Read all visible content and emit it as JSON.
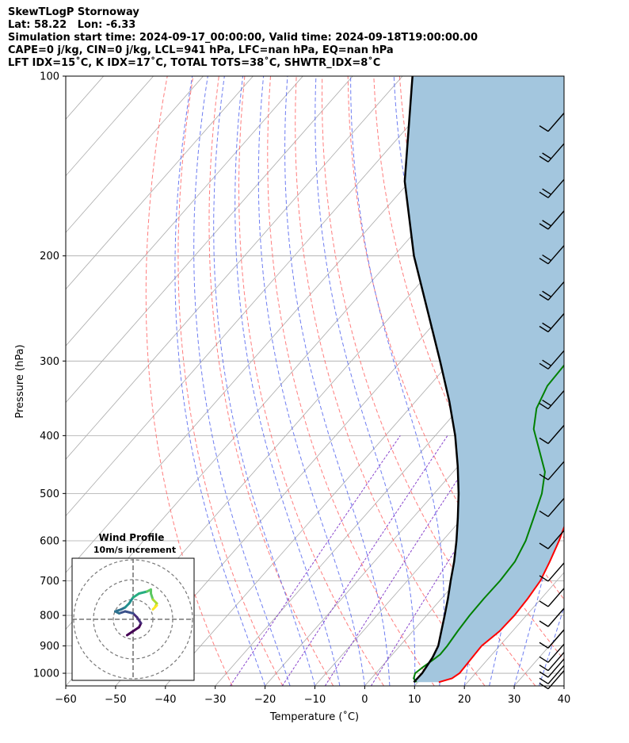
{
  "header": {
    "line1": "SkewTLogP Stornoway",
    "line2": "Lat: 58.22   Lon: -6.33",
    "line3": "Simulation start time: 2024-09-17_00:00:00, Valid time: 2024-09-18T19:00:00.00",
    "line4": "CAPE=0 j/kg, CIN=0 j/kg, LCL=941 hPa, LFC=nan hPa, EQ=nan hPa",
    "line5": "LFT IDX=15˚C, K IDX=17˚C, TOTAL TOTS=38˚C, SHWTR_IDX=8˚C"
  },
  "chart_data": {
    "type": "line",
    "xlabel": "Temperature (˚C)",
    "ylabel": "Pressure (hPa)",
    "xlim": [
      -60,
      40
    ],
    "ylim_pressure": [
      1050,
      100
    ],
    "log_pressure_axis": true,
    "skew": true,
    "grid": true,
    "x_ticks": [
      -60,
      -50,
      -40,
      -30,
      -20,
      -10,
      0,
      10,
      20,
      30,
      40
    ],
    "x_tick_labels": [
      "−60",
      "−50",
      "−40",
      "−30",
      "−20",
      "−10",
      "0",
      "10",
      "20",
      "30",
      "40"
    ],
    "y_ticks": [
      1000,
      900,
      800,
      700,
      600,
      500,
      400,
      300,
      200,
      100
    ],
    "y_tick_labels": [
      "1000",
      "900",
      "800",
      "700",
      "600",
      "500",
      "400",
      "300",
      "200",
      "100"
    ],
    "colors": {
      "temperature": "#ff0000",
      "dewpoint": "#008000",
      "parcel": "#000000",
      "cape_fill": "#a3c6de",
      "dry_adiabat": "#ff6666",
      "moist_adiabat": "#5566ee",
      "mixing_ratio": "#8844cc",
      "isotherm": "#aaaaaa"
    },
    "series": [
      {
        "role": "temperature",
        "points": [
          [
            1035,
            14.2
          ],
          [
            1020,
            16.2
          ],
          [
            1000,
            16.8
          ],
          [
            950,
            16.6
          ],
          [
            900,
            16.4
          ],
          [
            850,
            17.4
          ],
          [
            800,
            17.6
          ],
          [
            750,
            17.3
          ],
          [
            700,
            16.7
          ],
          [
            650,
            15.2
          ],
          [
            600,
            13.4
          ],
          [
            550,
            11.1
          ],
          [
            500,
            8.8
          ],
          [
            460,
            6.8
          ],
          [
            420,
            5.3
          ],
          [
            390,
            3.9
          ],
          [
            360,
            0.9
          ],
          [
            330,
            -2.7
          ],
          [
            300,
            -6.8
          ],
          [
            270,
            -11.2
          ],
          [
            240,
            -15.6
          ],
          [
            220,
            -18.6
          ],
          [
            200,
            -22.4
          ],
          [
            180,
            -27.3
          ],
          [
            165,
            -32.0
          ],
          [
            150,
            -34.5
          ],
          [
            140,
            -36.6
          ],
          [
            130,
            -40.6
          ],
          [
            120,
            -45.2
          ],
          [
            110,
            -49.2
          ],
          [
            100,
            -52.0
          ]
        ]
      },
      {
        "role": "dewpoint",
        "points": [
          [
            1035,
            9.7
          ],
          [
            1020,
            8.5
          ],
          [
            1000,
            7.9
          ],
          [
            975,
            8.4
          ],
          [
            950,
            9.1
          ],
          [
            930,
            9.6
          ],
          [
            900,
            9.5
          ],
          [
            850,
            9.0
          ],
          [
            800,
            8.6
          ],
          [
            750,
            8.5
          ],
          [
            700,
            8.6
          ],
          [
            650,
            8.2
          ],
          [
            600,
            6.7
          ],
          [
            550,
            4.3
          ],
          [
            500,
            1.6
          ],
          [
            460,
            -1.6
          ],
          [
            420,
            -7.0
          ],
          [
            390,
            -11.4
          ],
          [
            360,
            -14.5
          ],
          [
            330,
            -16.3
          ],
          [
            300,
            -16.6
          ],
          [
            275,
            -19.9
          ],
          [
            250,
            -23.0
          ],
          [
            235,
            -27.6
          ],
          [
            220,
            -30.3
          ],
          [
            200,
            -32.8
          ],
          [
            185,
            -35.6
          ],
          [
            170,
            -38.7
          ],
          [
            155,
            -42.1
          ],
          [
            140,
            -46.9
          ],
          [
            125,
            -53.4
          ],
          [
            110,
            -61.5
          ],
          [
            100,
            -67.5
          ]
        ]
      },
      {
        "role": "parcel",
        "points": [
          [
            1035,
            9.2
          ],
          [
            1000,
            9.3
          ],
          [
            941,
            8.6
          ],
          [
            900,
            7.7
          ],
          [
            850,
            5.7
          ],
          [
            800,
            3.6
          ],
          [
            750,
            1.3
          ],
          [
            700,
            -1.3
          ],
          [
            650,
            -4.0
          ],
          [
            600,
            -7.2
          ],
          [
            550,
            -10.9
          ],
          [
            500,
            -15.1
          ],
          [
            450,
            -20.1
          ],
          [
            400,
            -26.0
          ],
          [
            350,
            -33.3
          ],
          [
            300,
            -42.2
          ],
          [
            250,
            -52.9
          ],
          [
            200,
            -66.0
          ],
          [
            150,
            -81.0
          ],
          [
            100,
            -98.0
          ]
        ]
      }
    ],
    "wind_barbs": [
      {
        "pressure": 1030,
        "barbs": 1
      },
      {
        "pressure": 1010,
        "barbs": 1
      },
      {
        "pressure": 985,
        "barbs": 1
      },
      {
        "pressure": 960,
        "barbs": 1
      },
      {
        "pressure": 930,
        "barbs": 1
      },
      {
        "pressure": 880,
        "barbs": 1
      },
      {
        "pressure": 810,
        "barbs": 1
      },
      {
        "pressure": 750,
        "barbs": 1
      },
      {
        "pressure": 680,
        "barbs": 1
      },
      {
        "pressure": 600,
        "barbs": 1
      },
      {
        "pressure": 530,
        "barbs": 1
      },
      {
        "pressure": 460,
        "barbs": 1
      },
      {
        "pressure": 400,
        "barbs": 1
      },
      {
        "pressure": 350,
        "barbs": 2
      },
      {
        "pressure": 300,
        "barbs": 2
      },
      {
        "pressure": 260,
        "barbs": 2
      },
      {
        "pressure": 230,
        "barbs": 2
      },
      {
        "pressure": 200,
        "barbs": 2
      },
      {
        "pressure": 175,
        "barbs": 2
      },
      {
        "pressure": 155,
        "barbs": 2
      },
      {
        "pressure": 135,
        "barbs": 2
      },
      {
        "pressure": 120,
        "barbs": 1
      }
    ],
    "hodograph": {
      "title": "Wind Profile",
      "subtitle": "10m/s increment",
      "rings": [
        1,
        2,
        3
      ],
      "points": [
        [
          -0.3,
          -0.8
        ],
        [
          0.0,
          -0.6
        ],
        [
          0.3,
          -0.4
        ],
        [
          0.4,
          -0.2
        ],
        [
          0.2,
          0.1
        ],
        [
          0.0,
          0.3
        ],
        [
          -0.4,
          0.4
        ],
        [
          -0.7,
          0.3
        ],
        [
          -0.9,
          0.4
        ],
        [
          -0.6,
          0.5
        ],
        [
          -0.4,
          0.6
        ],
        [
          -0.2,
          0.8
        ],
        [
          0.0,
          1.1
        ],
        [
          0.3,
          1.3
        ],
        [
          0.7,
          1.4
        ],
        [
          0.9,
          1.5
        ],
        [
          0.9,
          1.3
        ],
        [
          1.0,
          1.0
        ],
        [
          1.2,
          0.8
        ],
        [
          1.1,
          0.6
        ],
        [
          1.0,
          0.5
        ],
        [
          1.2,
          0.7
        ]
      ]
    }
  }
}
